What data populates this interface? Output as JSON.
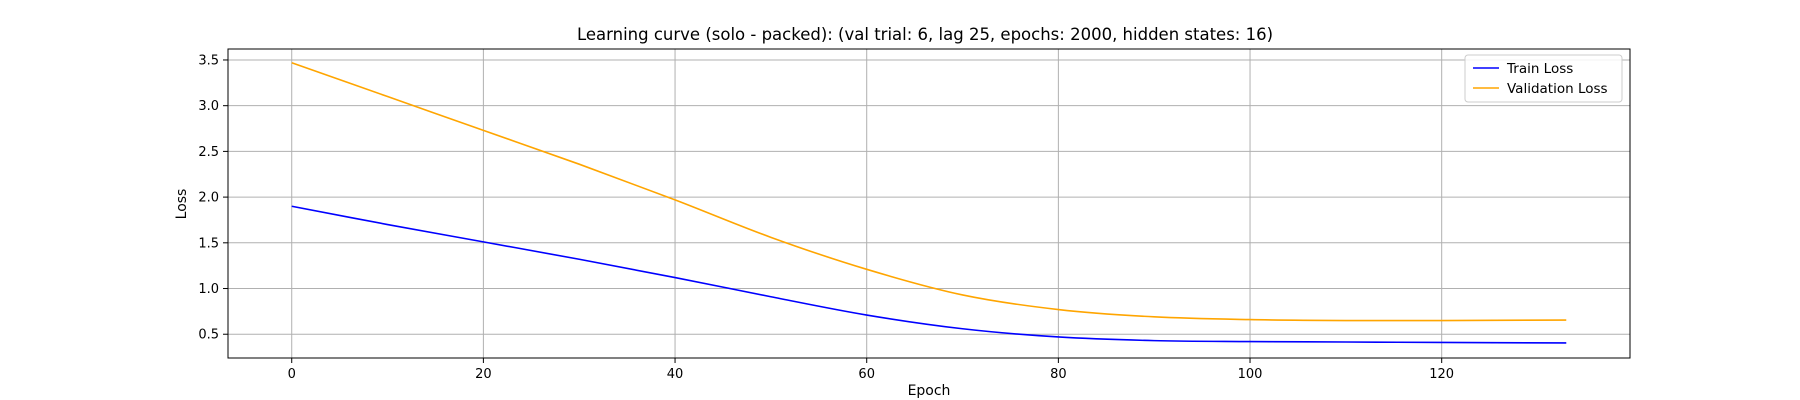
{
  "chart_data": {
    "type": "line",
    "title": "Learning curve (solo - packed): (val trial: 6, lag 25, epochs: 2000, hidden states: 16)",
    "xlabel": "Epoch",
    "ylabel": "Loss",
    "xlim": [
      -6.65,
      139.65
    ],
    "ylim": [
      0.24,
      3.62
    ],
    "xticks": [
      0,
      20,
      40,
      60,
      80,
      100,
      120
    ],
    "yticks": [
      0.5,
      1.0,
      1.5,
      2.0,
      2.5,
      3.0,
      3.5
    ],
    "xtick_labels": [
      "0",
      "20",
      "40",
      "60",
      "80",
      "100",
      "120"
    ],
    "ytick_labels": [
      "0.5",
      "1.0",
      "1.5",
      "2.0",
      "2.5",
      "3.0",
      "3.5"
    ],
    "grid": true,
    "legend_position": "top-right",
    "series": [
      {
        "name": "Train Loss",
        "color": "#0000ff",
        "x": [
          0,
          10,
          20,
          30,
          40,
          50,
          60,
          70,
          80,
          90,
          100,
          110,
          120,
          133
        ],
        "y": [
          1.9,
          1.7,
          1.51,
          1.32,
          1.12,
          0.91,
          0.71,
          0.56,
          0.47,
          0.43,
          0.42,
          0.415,
          0.41,
          0.405
        ]
      },
      {
        "name": "Validation Loss",
        "color": "#ffa500",
        "x": [
          0,
          10,
          20,
          30,
          40,
          50,
          60,
          70,
          80,
          90,
          100,
          110,
          120,
          133
        ],
        "y": [
          3.47,
          3.1,
          2.73,
          2.36,
          1.97,
          1.56,
          1.21,
          0.93,
          0.77,
          0.69,
          0.66,
          0.65,
          0.65,
          0.655
        ]
      }
    ]
  }
}
